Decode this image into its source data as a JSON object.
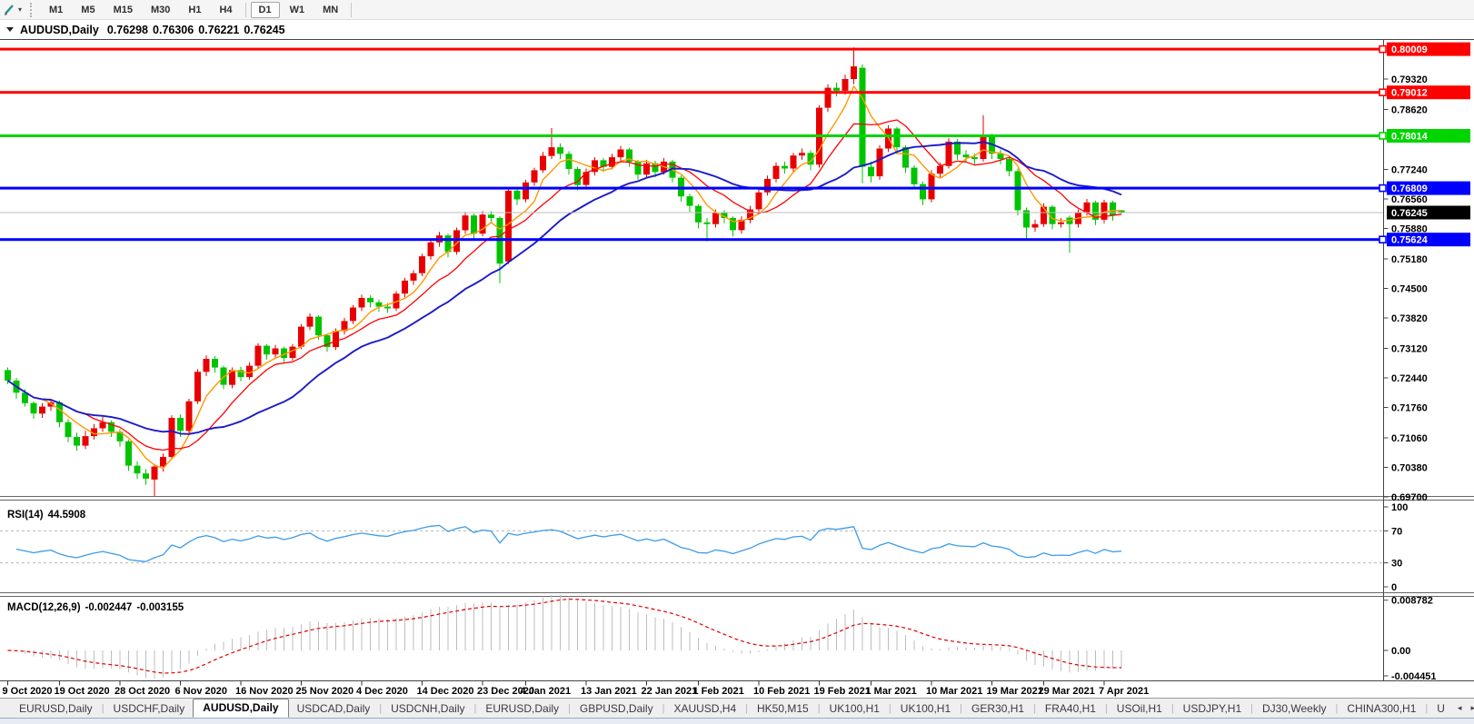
{
  "toolbar": {
    "timeframes": [
      {
        "label": "M1",
        "active": false
      },
      {
        "label": "M5",
        "active": false
      },
      {
        "label": "M15",
        "active": false
      },
      {
        "label": "M30",
        "active": false
      },
      {
        "label": "H1",
        "active": false
      },
      {
        "label": "H4",
        "active": false
      },
      {
        "label": "D1",
        "active": true
      },
      {
        "label": "W1",
        "active": false
      },
      {
        "label": "MN",
        "active": false
      }
    ],
    "icons": {
      "draw_tool": "pencil-icon",
      "dropdown": "chevron-down-icon"
    }
  },
  "title": {
    "symbol": "AUDUSD,Daily",
    "open": "0.76298",
    "high": "0.76306",
    "low": "0.76221",
    "close": "0.76245"
  },
  "chart_data": {
    "type": "candlestick",
    "symbol": "AUDUSD",
    "timeframe": "Daily",
    "candle_up_color": "#e80000",
    "candle_down_color": "#00c400",
    "candles": [
      [
        0.7262,
        0.7268,
        0.723,
        0.7238
      ],
      [
        0.7238,
        0.7244,
        0.7196,
        0.721
      ],
      [
        0.721,
        0.7218,
        0.7178,
        0.7186
      ],
      [
        0.7186,
        0.719,
        0.715,
        0.7162
      ],
      [
        0.7162,
        0.7186,
        0.7152,
        0.7178
      ],
      [
        0.7178,
        0.7196,
        0.7168,
        0.7188
      ],
      [
        0.7188,
        0.7192,
        0.713,
        0.7142
      ],
      [
        0.7142,
        0.715,
        0.7096,
        0.7108
      ],
      [
        0.7108,
        0.7118,
        0.7076,
        0.7088
      ],
      [
        0.7088,
        0.7122,
        0.708,
        0.711
      ],
      [
        0.711,
        0.7138,
        0.7102,
        0.7128
      ],
      [
        0.7128,
        0.7154,
        0.712,
        0.7142
      ],
      [
        0.7142,
        0.7146,
        0.7108,
        0.712
      ],
      [
        0.712,
        0.7126,
        0.7086,
        0.7098
      ],
      [
        0.7098,
        0.7102,
        0.703,
        0.7042
      ],
      [
        0.7042,
        0.7052,
        0.7012,
        0.7024
      ],
      [
        0.7024,
        0.7034,
        0.6998,
        0.7012
      ],
      [
        0.701,
        0.7046,
        0.6972,
        0.704
      ],
      [
        0.704,
        0.707,
        0.7028,
        0.7062
      ],
      [
        0.7062,
        0.7158,
        0.7056,
        0.7152
      ],
      [
        0.7152,
        0.716,
        0.7108,
        0.7122
      ],
      [
        0.7122,
        0.7196,
        0.7116,
        0.719
      ],
      [
        0.719,
        0.7264,
        0.7184,
        0.7258
      ],
      [
        0.7258,
        0.7296,
        0.7248,
        0.7288
      ],
      [
        0.7288,
        0.7294,
        0.7256,
        0.7268
      ],
      [
        0.7268,
        0.7272,
        0.7218,
        0.7228
      ],
      [
        0.7228,
        0.7268,
        0.722,
        0.7262
      ],
      [
        0.7262,
        0.727,
        0.7236,
        0.7246
      ],
      [
        0.7246,
        0.728,
        0.724,
        0.7272
      ],
      [
        0.7272,
        0.7324,
        0.7266,
        0.7318
      ],
      [
        0.7318,
        0.7322,
        0.7286,
        0.7298
      ],
      [
        0.7298,
        0.732,
        0.729,
        0.7312
      ],
      [
        0.7312,
        0.7316,
        0.728,
        0.729
      ],
      [
        0.729,
        0.7322,
        0.7284,
        0.7316
      ],
      [
        0.7316,
        0.7368,
        0.731,
        0.7362
      ],
      [
        0.7362,
        0.7393,
        0.7354,
        0.7385
      ],
      [
        0.7385,
        0.7388,
        0.7332,
        0.7342
      ],
      [
        0.7342,
        0.7346,
        0.7304,
        0.7315
      ],
      [
        0.7315,
        0.7358,
        0.7308,
        0.7352
      ],
      [
        0.7352,
        0.7382,
        0.7344,
        0.7375
      ],
      [
        0.7375,
        0.7412,
        0.7368,
        0.7406
      ],
      [
        0.7406,
        0.7436,
        0.7398,
        0.7428
      ],
      [
        0.7428,
        0.7434,
        0.7406,
        0.7418
      ],
      [
        0.7418,
        0.7424,
        0.7396,
        0.7408
      ],
      [
        0.7408,
        0.7416,
        0.7394,
        0.7404
      ],
      [
        0.7404,
        0.7444,
        0.7398,
        0.7438
      ],
      [
        0.7438,
        0.7474,
        0.743,
        0.7468
      ],
      [
        0.7468,
        0.7492,
        0.7458,
        0.7485
      ],
      [
        0.7485,
        0.753,
        0.7478,
        0.7524
      ],
      [
        0.7524,
        0.7562,
        0.7516,
        0.7556
      ],
      [
        0.7556,
        0.758,
        0.7546,
        0.7572
      ],
      [
        0.7572,
        0.7576,
        0.7522,
        0.7534
      ],
      [
        0.7534,
        0.759,
        0.7528,
        0.7584
      ],
      [
        0.7584,
        0.7626,
        0.7576,
        0.7618
      ],
      [
        0.7618,
        0.7622,
        0.7564,
        0.7576
      ],
      [
        0.7576,
        0.7628,
        0.757,
        0.762
      ],
      [
        0.762,
        0.7628,
        0.76,
        0.7612
      ],
      [
        0.7612,
        0.7616,
        0.7462,
        0.7507
      ],
      [
        0.7512,
        0.768,
        0.7506,
        0.7675
      ],
      [
        0.7675,
        0.7682,
        0.7642,
        0.7655
      ],
      [
        0.7655,
        0.77,
        0.7648,
        0.7694
      ],
      [
        0.7694,
        0.7728,
        0.7686,
        0.7722
      ],
      [
        0.7722,
        0.7764,
        0.7716,
        0.7755
      ],
      [
        0.7755,
        0.7819,
        0.7748,
        0.7775
      ],
      [
        0.7775,
        0.7784,
        0.7748,
        0.776
      ],
      [
        0.776,
        0.7766,
        0.7712,
        0.7725
      ],
      [
        0.7725,
        0.773,
        0.7676,
        0.7688
      ],
      [
        0.7688,
        0.7726,
        0.7682,
        0.7718
      ],
      [
        0.7718,
        0.7752,
        0.771,
        0.7745
      ],
      [
        0.7745,
        0.775,
        0.7718,
        0.773
      ],
      [
        0.773,
        0.776,
        0.7724,
        0.7752
      ],
      [
        0.7752,
        0.7778,
        0.7744,
        0.777
      ],
      [
        0.777,
        0.7774,
        0.773,
        0.7742
      ],
      [
        0.7742,
        0.7746,
        0.77,
        0.7712
      ],
      [
        0.7712,
        0.7746,
        0.7706,
        0.7738
      ],
      [
        0.7738,
        0.7744,
        0.7706,
        0.7718
      ],
      [
        0.7718,
        0.775,
        0.7712,
        0.7742
      ],
      [
        0.7742,
        0.7746,
        0.7694,
        0.7705
      ],
      [
        0.7705,
        0.771,
        0.765,
        0.7662
      ],
      [
        0.7662,
        0.7668,
        0.7626,
        0.764
      ],
      [
        0.764,
        0.7644,
        0.7588,
        0.7602
      ],
      [
        0.7602,
        0.7612,
        0.7558,
        0.7598
      ],
      [
        0.7598,
        0.7632,
        0.759,
        0.7625
      ],
      [
        0.7625,
        0.763,
        0.76,
        0.7612
      ],
      [
        0.7612,
        0.7616,
        0.757,
        0.7584
      ],
      [
        0.7584,
        0.7616,
        0.7576,
        0.7608
      ],
      [
        0.7608,
        0.764,
        0.76,
        0.7632
      ],
      [
        0.7632,
        0.7678,
        0.7624,
        0.7671
      ],
      [
        0.7671,
        0.771,
        0.7664,
        0.7702
      ],
      [
        0.7702,
        0.774,
        0.7694,
        0.7732
      ],
      [
        0.7732,
        0.7742,
        0.7714,
        0.7726
      ],
      [
        0.7726,
        0.7762,
        0.7718,
        0.7756
      ],
      [
        0.7756,
        0.7772,
        0.7746,
        0.7762
      ],
      [
        0.7762,
        0.7768,
        0.7722,
        0.7735
      ],
      [
        0.7735,
        0.7872,
        0.7728,
        0.7866
      ],
      [
        0.7866,
        0.792,
        0.7856,
        0.7912
      ],
      [
        0.7912,
        0.7924,
        0.7892,
        0.7905
      ],
      [
        0.7905,
        0.7942,
        0.7896,
        0.7932
      ],
      [
        0.7932,
        0.8005,
        0.792,
        0.7961
      ],
      [
        0.7958,
        0.7966,
        0.7692,
        0.773
      ],
      [
        0.773,
        0.7742,
        0.7694,
        0.7708
      ],
      [
        0.7708,
        0.778,
        0.77,
        0.7772
      ],
      [
        0.7772,
        0.7826,
        0.7764,
        0.7818
      ],
      [
        0.7818,
        0.7822,
        0.7762,
        0.7775
      ],
      [
        0.7775,
        0.778,
        0.7716,
        0.7728
      ],
      [
        0.7728,
        0.7734,
        0.7678,
        0.769
      ],
      [
        0.769,
        0.7696,
        0.7642,
        0.7655
      ],
      [
        0.7655,
        0.7722,
        0.7648,
        0.7714
      ],
      [
        0.7714,
        0.774,
        0.7706,
        0.7732
      ],
      [
        0.7732,
        0.7796,
        0.7726,
        0.7788
      ],
      [
        0.7788,
        0.7794,
        0.7746,
        0.7758
      ],
      [
        0.7758,
        0.7768,
        0.774,
        0.7752
      ],
      [
        0.7752,
        0.776,
        0.7736,
        0.7748
      ],
      [
        0.7748,
        0.7849,
        0.7742,
        0.78
      ],
      [
        0.78,
        0.7806,
        0.7748,
        0.776
      ],
      [
        0.776,
        0.777,
        0.7736,
        0.7748
      ],
      [
        0.7748,
        0.7754,
        0.7708,
        0.772
      ],
      [
        0.772,
        0.7726,
        0.7618,
        0.763
      ],
      [
        0.763,
        0.7636,
        0.7562,
        0.759
      ],
      [
        0.759,
        0.7608,
        0.758,
        0.7598
      ],
      [
        0.7598,
        0.7646,
        0.7592,
        0.7638
      ],
      [
        0.7638,
        0.7642,
        0.7586,
        0.7598
      ],
      [
        0.7598,
        0.7612,
        0.759,
        0.7602
      ],
      [
        0.7613,
        0.7618,
        0.7532,
        0.7598
      ],
      [
        0.7598,
        0.7632,
        0.759,
        0.7625
      ],
      [
        0.7625,
        0.7656,
        0.7618,
        0.7648
      ],
      [
        0.7648,
        0.7652,
        0.7596,
        0.7608
      ],
      [
        0.7608,
        0.7654,
        0.76,
        0.7648
      ],
      [
        0.7648,
        0.7652,
        0.7606,
        0.7618
      ],
      [
        0.76298,
        0.76306,
        0.76221,
        0.76245
      ]
    ],
    "date_ticks": [
      [
        0,
        "9 Oct 2020"
      ],
      [
        6,
        "19 Oct 2020"
      ],
      [
        13,
        "28 Oct 2020"
      ],
      [
        20,
        "6 Nov 2020"
      ],
      [
        27,
        "16 Nov 2020"
      ],
      [
        34,
        "25 Nov 2020"
      ],
      [
        41,
        "4 Dec 2020"
      ],
      [
        48,
        "14 Dec 2020"
      ],
      [
        55,
        "23 Dec 2020"
      ],
      [
        60,
        "4 Jan 2021"
      ],
      [
        67,
        "13 Jan 2021"
      ],
      [
        74,
        "22 Jan 2021"
      ],
      [
        80,
        "1 Feb 2021"
      ],
      [
        87,
        "10 Feb 2021"
      ],
      [
        94,
        "19 Feb 2021"
      ],
      [
        100,
        "1 Mar 2021"
      ],
      [
        107,
        "10 Mar 2021"
      ],
      [
        114,
        "19 Mar 2021"
      ],
      [
        120,
        "29 Mar 2021"
      ],
      [
        127,
        "7 Apr 2021"
      ]
    ],
    "price_ticks": [
      "0.79320",
      "0.78620",
      "0.77940",
      "0.77240",
      "0.76560",
      "0.75880",
      "0.75180",
      "0.74500",
      "0.73820",
      "0.73120",
      "0.72440",
      "0.71760",
      "0.71060",
      "0.70380",
      "0.69700"
    ],
    "moving_averages": [
      {
        "period": 5,
        "color": "#ff9900",
        "width": 1.4,
        "name": "ma-fast-orange"
      },
      {
        "period": 10,
        "color": "#ff0000",
        "width": 1.3,
        "name": "ma-mid-red"
      },
      {
        "period": 20,
        "color": "#1b1bc8",
        "width": 1.9,
        "name": "ma-slow-blue"
      }
    ],
    "hlines": [
      {
        "price": 0.80009,
        "label": "0.80009",
        "color": "#ff0000"
      },
      {
        "price": 0.79012,
        "label": "0.79012",
        "color": "#ff0000"
      },
      {
        "price": 0.78014,
        "label": "0.78014",
        "color": "#00d500"
      },
      {
        "price": 0.76809,
        "label": "0.76809",
        "color": "#0000ff"
      },
      {
        "price": 0.75624,
        "label": "0.75624",
        "color": "#0000ff"
      }
    ],
    "current_price": {
      "price": 0.76245,
      "label": "0.76245",
      "line_color": "#bdbdbd",
      "badge_color": "#000000"
    },
    "indicators": {
      "rsi": {
        "name": "RSI(14)",
        "value": "44.5908",
        "period": 14,
        "color": "#3d9be9",
        "levels": [
          70,
          30
        ],
        "axis_labels": [
          "100",
          "70",
          "30",
          "0"
        ]
      },
      "macd": {
        "name": "MACD(12,26,9)",
        "value_main": "-0.002447",
        "value_signal": "-0.003155",
        "fast": 12,
        "slow": 26,
        "signal": 9,
        "hist_color": "#bdbdbd",
        "signal_color": "#e00000",
        "axis_labels": [
          {
            "v": 0.008782,
            "label": "0.008782"
          },
          {
            "v": 0,
            "label": "0.00"
          },
          {
            "v": -0.004451,
            "label": "-0.004451"
          }
        ]
      }
    }
  },
  "tabs": {
    "items": [
      {
        "label": "EURUSD,Daily"
      },
      {
        "label": "USDCHF,Daily"
      },
      {
        "label": "AUDUSD,Daily"
      },
      {
        "label": "USDCAD,Daily"
      },
      {
        "label": "USDCNH,Daily"
      },
      {
        "label": "EURUSD,Daily"
      },
      {
        "label": "GBPUSD,Daily"
      },
      {
        "label": "XAUUSD,H4"
      },
      {
        "label": "HK50,M15"
      },
      {
        "label": "UK100,H1"
      },
      {
        "label": "UK100,H1"
      },
      {
        "label": "GER30,H1"
      },
      {
        "label": "FRA40,H1"
      },
      {
        "label": "USOil,H1"
      },
      {
        "label": "USDJPY,H1"
      },
      {
        "label": "DJ30,Weekly"
      },
      {
        "label": "CHINA300,H1"
      }
    ],
    "active_index": 2,
    "overflow_tab": "U",
    "scroll_left_glyph": "◂",
    "scroll_right_glyph": "▸"
  }
}
